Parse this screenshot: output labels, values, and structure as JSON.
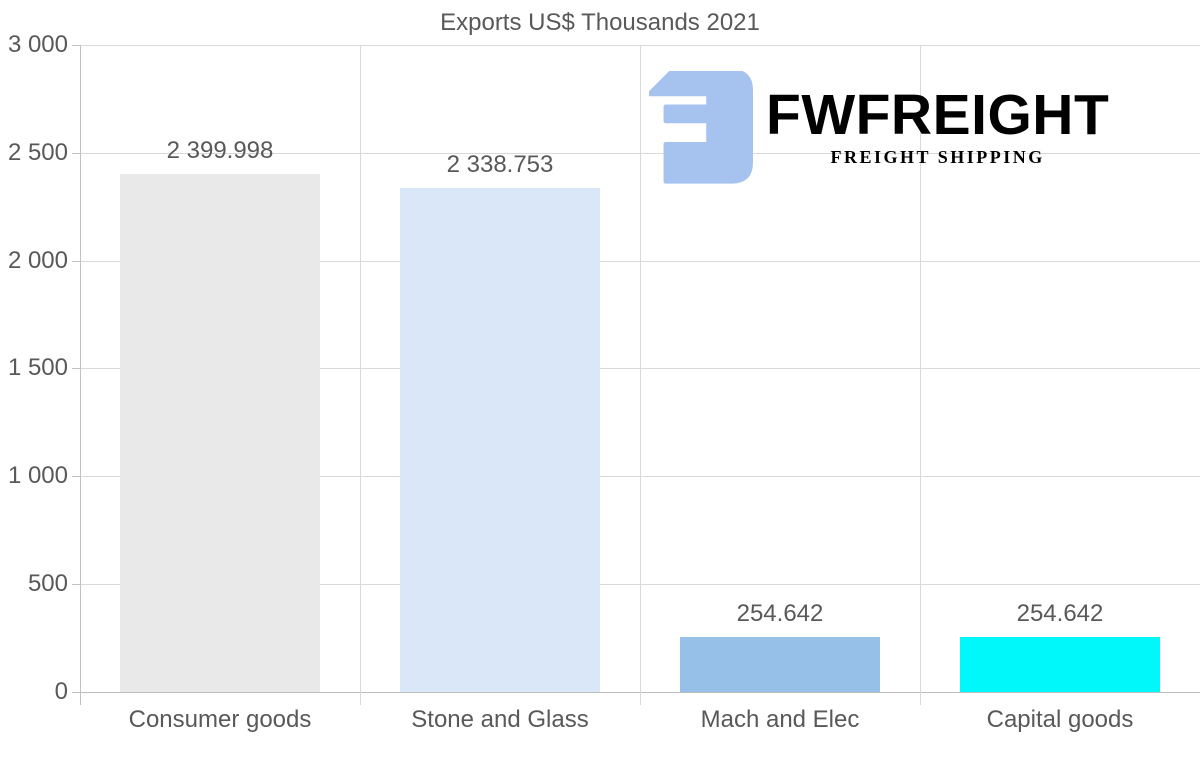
{
  "chart_data": {
    "type": "bar",
    "title": "Exports US$ Thousands 2021",
    "categories": [
      "Consumer goods",
      "Stone and Glass",
      "Mach and Elec",
      "Capital goods"
    ],
    "values": [
      2399.998,
      2338.753,
      254.642,
      254.642
    ],
    "value_labels": [
      "2 399.998",
      "2 338.753",
      "254.642",
      "254.642"
    ],
    "bar_colors": [
      "#e9e9e9",
      "#d9e7f8",
      "#96c0e8",
      "#00f8fb"
    ],
    "xlabel": "",
    "ylabel": "",
    "ylim": [
      0,
      3000
    ],
    "yticks": {
      "values": [
        0,
        500,
        1000,
        1500,
        2000,
        2500,
        3000
      ],
      "labels": [
        "0",
        "500",
        "1 000",
        "1 500",
        "2 000",
        "2 500",
        "3 000"
      ]
    },
    "grid": "horizontal gridlines + vertical category separators",
    "legend": "none",
    "background": "#ffffff"
  },
  "branding": {
    "wordmark": "FWFREIGHT",
    "tagline": "FREIGHT SHIPPING",
    "logo_icon": "fwfreight-e-block-icon",
    "logo_color": "#a6c3f0"
  },
  "colors": {
    "text": "#595959",
    "gridline": "#d9d9d9",
    "axis_line": "#c2c2c2",
    "bottom_axis": "#bdbdbd"
  }
}
